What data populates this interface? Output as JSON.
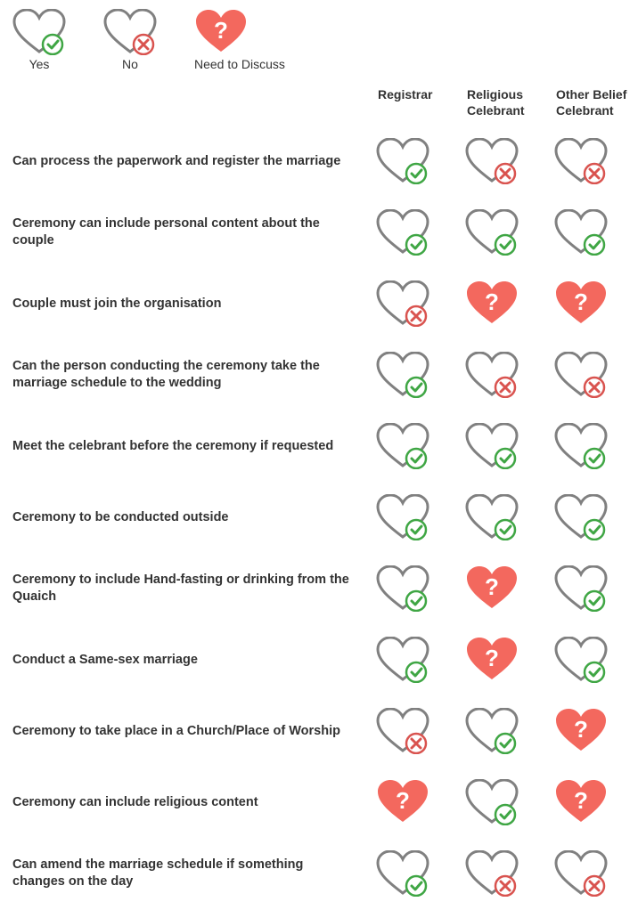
{
  "colors": {
    "heart_outline": "#808080",
    "heart_outline_stroke_width": 3,
    "yes_green": "#3fa644",
    "no_red": "#d9534f",
    "discuss_fill": "#f3685e",
    "question_mark": "#ffffff",
    "text_color": "#333333",
    "background": "#ffffff"
  },
  "icon_size": {
    "width": 60,
    "height": 52
  },
  "legend": {
    "yes": {
      "label": "Yes",
      "icon": "yes"
    },
    "no": {
      "label": "No",
      "icon": "no"
    },
    "discuss": {
      "label": "Need to Discuss",
      "icon": "discuss"
    }
  },
  "columns": [
    {
      "key": "registrar",
      "label": "Registrar"
    },
    {
      "key": "religious",
      "label": "Religious Celebrant"
    },
    {
      "key": "other",
      "label": "Other Belief Celebrant"
    }
  ],
  "rows": [
    {
      "question": "Can process the paperwork and register the marriage",
      "values": [
        "yes",
        "no",
        "no"
      ]
    },
    {
      "question": "Ceremony can include personal content about the couple",
      "values": [
        "yes",
        "yes",
        "yes"
      ]
    },
    {
      "question": "Couple must join the organisation",
      "values": [
        "no",
        "discuss",
        "discuss"
      ]
    },
    {
      "question": "Can the person conducting the ceremony take the marriage schedule to the wedding",
      "values": [
        "yes",
        "no",
        "no"
      ]
    },
    {
      "question": "Meet the celebrant before the ceremony if requested",
      "values": [
        "yes",
        "yes",
        "yes"
      ]
    },
    {
      "question": "Ceremony to be conducted outside",
      "values": [
        "yes",
        "yes",
        "yes"
      ]
    },
    {
      "question": "Ceremony to include Hand-fasting or drinking from the Quaich",
      "values": [
        "yes",
        "discuss",
        "yes"
      ]
    },
    {
      "question": "Conduct a Same-sex marriage",
      "values": [
        "yes",
        "discuss",
        "yes"
      ]
    },
    {
      "question": "Ceremony to take place in a Church/Place of Worship",
      "values": [
        "no",
        "yes",
        "discuss"
      ]
    },
    {
      "question": "Ceremony can include religious content",
      "values": [
        "discuss",
        "yes",
        "discuss"
      ]
    },
    {
      "question": "Can amend the marriage schedule if something changes on the day",
      "values": [
        "yes",
        "no",
        "no"
      ]
    }
  ]
}
